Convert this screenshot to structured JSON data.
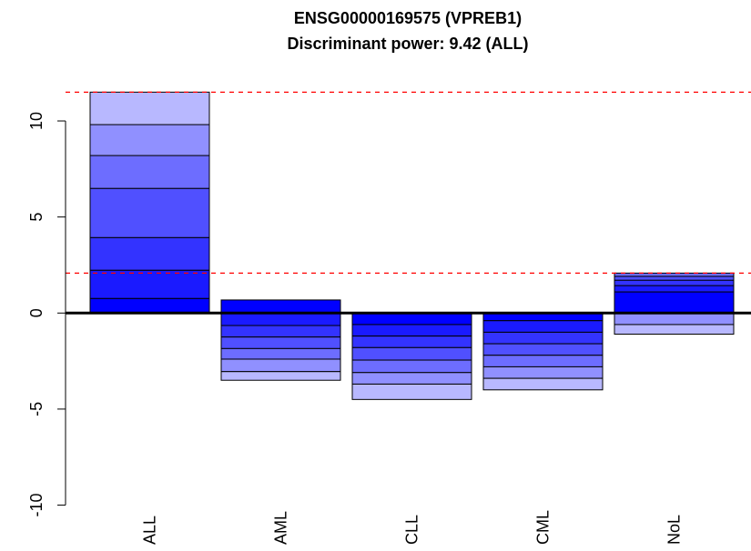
{
  "chart_data": {
    "type": "bar",
    "stacked": true,
    "title": "ENSG00000169575 (VPREB1)",
    "subtitle": "Discriminant power: 9.42 (ALL)",
    "categories": [
      "ALL",
      "AML",
      "CLL",
      "CML",
      "NoL"
    ],
    "series": [
      {
        "color": "#0000ff",
        "values": [
          0.76,
          0.68,
          -0.6,
          -0.4,
          1.1
        ]
      },
      {
        "color": "#1a1aff",
        "values": [
          1.47,
          -0.65,
          -0.6,
          -0.6,
          0.33
        ]
      },
      {
        "color": "#3333ff",
        "values": [
          1.7,
          -0.6,
          -0.6,
          -0.6,
          0.28
        ]
      },
      {
        "color": "#5050ff",
        "values": [
          2.56,
          -0.6,
          -0.65,
          -0.6,
          0.2
        ]
      },
      {
        "color": "#6d6dff",
        "values": [
          1.71,
          -0.55,
          -0.65,
          -0.6,
          0.17
        ]
      },
      {
        "color": "#9090ff",
        "values": [
          1.61,
          -0.65,
          -0.6,
          -0.6,
          -0.6
        ]
      },
      {
        "color": "#b8b8ff",
        "values": [
          1.69,
          -0.45,
          -0.8,
          -0.6,
          -0.5
        ]
      }
    ],
    "reference_lines": [
      11.5,
      2.08
    ],
    "reference_color": "#ff0000",
    "ylim": [
      -11.3,
      11.8
    ],
    "yticks": [
      -10,
      -5,
      0,
      5,
      10
    ]
  }
}
